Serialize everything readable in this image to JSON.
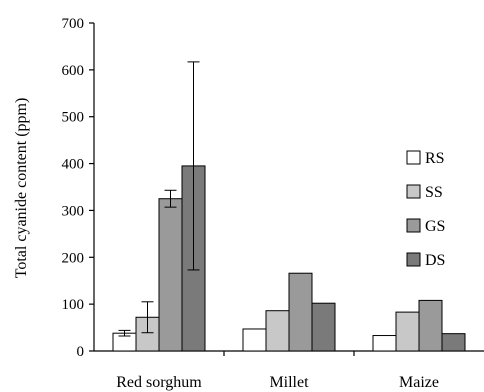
{
  "chart_data": {
    "type": "bar",
    "ylabel": "Total cyanide content (ppm)",
    "xlabel": "",
    "ylim": [
      0,
      700
    ],
    "yticks": [
      0,
      100,
      200,
      300,
      400,
      500,
      600,
      700
    ],
    "categories": [
      "Red sorghum",
      "Millet",
      "Maize"
    ],
    "legend_position": "right",
    "grid": false,
    "series": [
      {
        "name": "RS",
        "color": "#ffffff",
        "values": [
          38,
          47,
          33
        ],
        "errors": [
          6,
          null,
          null
        ]
      },
      {
        "name": "SS",
        "color": "#c8c8c8",
        "values": [
          72,
          86,
          83
        ],
        "errors": [
          33,
          null,
          null
        ]
      },
      {
        "name": "GS",
        "color": "#9a9a9a",
        "values": [
          325,
          166,
          108
        ],
        "errors": [
          18,
          null,
          null
        ]
      },
      {
        "name": "DS",
        "color": "#7a7a7a",
        "values": [
          395,
          102,
          37
        ],
        "errors": [
          222,
          null,
          null
        ]
      }
    ]
  }
}
